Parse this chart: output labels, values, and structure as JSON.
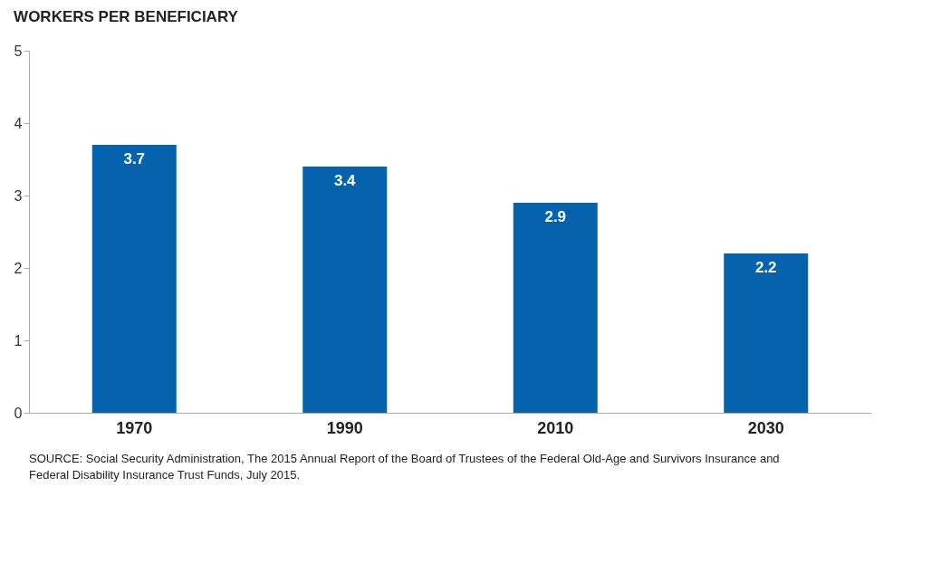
{
  "chart_data": {
    "type": "bar",
    "title": "WORKERS PER BENEFICIARY",
    "categories": [
      "1970",
      "1990",
      "2010",
      "2030"
    ],
    "values": [
      3.7,
      3.4,
      2.9,
      2.2
    ],
    "color": "#0563ae",
    "ylim": [
      0,
      5
    ],
    "yticks": [
      0,
      1,
      2,
      3,
      4,
      5
    ],
    "grid": false,
    "data_labels": true,
    "annotations": [
      "SOURCE: Social Security Administration, The 2015 Annual Report of the Board of Trustees of the Federal Old-Age and Survivors Insurance and Federal Disability Insurance Trust Funds, July 2015."
    ]
  }
}
